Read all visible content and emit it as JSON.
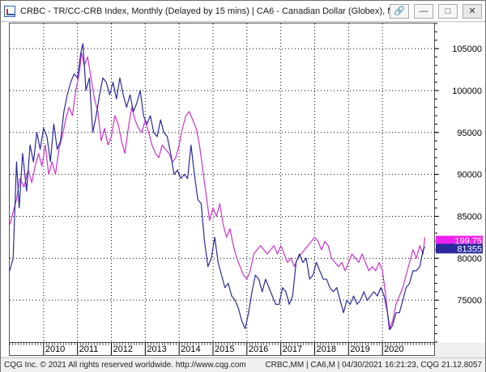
{
  "window": {
    "title": "CRBC - TR/CC-CRB Index, Monthly (Delayed by 15 mins)  |  CA6 - Canadian Dollar (Globex), M...",
    "buttons": {
      "link_icon": "link-icon",
      "minimize": "—",
      "maximize": "□",
      "close": "✕"
    }
  },
  "statusbar": {
    "left": "CQG Inc. © 2021 All rights reserved worldwide. http://www.cqg.com",
    "right": "CRBC,MM | CA6,M | 04/30/2021 16:21:23, CQG 21.12.8057"
  },
  "colors": {
    "crb": "#cc33cc",
    "cad": "#2a2a9c"
  },
  "chart_data": {
    "type": "line",
    "x_range": [
      2009.0,
      2021.55
    ],
    "ylim": [
      70000,
      108000
    ],
    "x_ticks": [
      2010,
      2011,
      2012,
      2013,
      2014,
      2015,
      2016,
      2017,
      2018,
      2019,
      2020
    ],
    "x_tick_labels": [
      "2010",
      "2011",
      "2012",
      "2013",
      "2014",
      "2015",
      "2016",
      "2017",
      "2018",
      "2019",
      "2020"
    ],
    "y_ticks": [
      75000,
      80000,
      85000,
      90000,
      95000,
      100000,
      105000
    ],
    "y_tick_labels": [
      "75000",
      "80000",
      "85000",
      "90000",
      "95000",
      "100000",
      "105000"
    ],
    "grid": true,
    "last_value_markers": [
      {
        "label": "199.75",
        "value": 82100,
        "color": "#ee22ee"
      },
      {
        "label": "81355",
        "value": 81150,
        "color": "#2a2a9c"
      }
    ],
    "series": [
      {
        "points": [
          [
            2009.0,
            84000
          ],
          [
            2009.1,
            85500
          ],
          [
            2009.2,
            87000
          ],
          [
            2009.3,
            89500
          ],
          [
            2009.42,
            88500
          ],
          [
            2009.55,
            90500
          ],
          [
            2009.65,
            89000
          ],
          [
            2009.75,
            91000
          ],
          [
            2009.85,
            92500
          ],
          [
            2009.95,
            91000
          ],
          [
            2010.05,
            93500
          ],
          [
            2010.15,
            90000
          ],
          [
            2010.25,
            91500
          ],
          [
            2010.35,
            90000
          ],
          [
            2010.45,
            93000
          ],
          [
            2010.55,
            94500
          ],
          [
            2010.65,
            96500
          ],
          [
            2010.75,
            98000
          ],
          [
            2010.85,
            97000
          ],
          [
            2010.95,
            100000
          ],
          [
            2011.05,
            102000
          ],
          [
            2011.12,
            104500
          ],
          [
            2011.2,
            103000
          ],
          [
            2011.3,
            104000
          ],
          [
            2011.4,
            101500
          ],
          [
            2011.5,
            99000
          ],
          [
            2011.6,
            97500
          ],
          [
            2011.7,
            94000
          ],
          [
            2011.8,
            95500
          ],
          [
            2011.9,
            93500
          ],
          [
            2012.0,
            94500
          ],
          [
            2012.1,
            97000
          ],
          [
            2012.2,
            96000
          ],
          [
            2012.3,
            94000
          ],
          [
            2012.4,
            92500
          ],
          [
            2012.5,
            95500
          ],
          [
            2012.6,
            98000
          ],
          [
            2012.7,
            96500
          ],
          [
            2012.8,
            95500
          ],
          [
            2012.9,
            95000
          ],
          [
            2013.0,
            96500
          ],
          [
            2013.1,
            95000
          ],
          [
            2013.2,
            93500
          ],
          [
            2013.3,
            92500
          ],
          [
            2013.4,
            92000
          ],
          [
            2013.5,
            93500
          ],
          [
            2013.6,
            93000
          ],
          [
            2013.7,
            92500
          ],
          [
            2013.8,
            91500
          ],
          [
            2013.9,
            92000
          ],
          [
            2014.0,
            93500
          ],
          [
            2014.1,
            95500
          ],
          [
            2014.2,
            97000
          ],
          [
            2014.3,
            97500
          ],
          [
            2014.4,
            96500
          ],
          [
            2014.5,
            95500
          ],
          [
            2014.6,
            93500
          ],
          [
            2014.7,
            90500
          ],
          [
            2014.8,
            87500
          ],
          [
            2014.9,
            84500
          ],
          [
            2015.0,
            86000
          ],
          [
            2015.1,
            85000
          ],
          [
            2015.2,
            86500
          ],
          [
            2015.3,
            84000
          ],
          [
            2015.4,
            82500
          ],
          [
            2015.5,
            83500
          ],
          [
            2015.6,
            81500
          ],
          [
            2015.7,
            80000
          ],
          [
            2015.8,
            79000
          ],
          [
            2015.9,
            78000
          ],
          [
            2016.0,
            77500
          ],
          [
            2016.1,
            78500
          ],
          [
            2016.2,
            80500
          ],
          [
            2016.3,
            81000
          ],
          [
            2016.4,
            81500
          ],
          [
            2016.5,
            81000
          ],
          [
            2016.6,
            80500
          ],
          [
            2016.7,
            81000
          ],
          [
            2016.8,
            81500
          ],
          [
            2016.9,
            80500
          ],
          [
            2017.0,
            81500
          ],
          [
            2017.1,
            80500
          ],
          [
            2017.2,
            79500
          ],
          [
            2017.3,
            80000
          ],
          [
            2017.4,
            79000
          ],
          [
            2017.5,
            80000
          ],
          [
            2017.6,
            80500
          ],
          [
            2017.7,
            81000
          ],
          [
            2017.8,
            81500
          ],
          [
            2017.9,
            82000
          ],
          [
            2018.0,
            82500
          ],
          [
            2018.1,
            82000
          ],
          [
            2018.2,
            81000
          ],
          [
            2018.3,
            82000
          ],
          [
            2018.4,
            81500
          ],
          [
            2018.5,
            80000
          ],
          [
            2018.6,
            79500
          ],
          [
            2018.7,
            79000
          ],
          [
            2018.8,
            79500
          ],
          [
            2018.9,
            78500
          ],
          [
            2019.0,
            79500
          ],
          [
            2019.1,
            80500
          ],
          [
            2019.2,
            80000
          ],
          [
            2019.3,
            79500
          ],
          [
            2019.4,
            80500
          ],
          [
            2019.5,
            79500
          ],
          [
            2019.6,
            78500
          ],
          [
            2019.7,
            79000
          ],
          [
            2019.8,
            78500
          ],
          [
            2019.9,
            79500
          ],
          [
            2020.0,
            78500
          ],
          [
            2020.1,
            75500
          ],
          [
            2020.2,
            71500
          ],
          [
            2020.3,
            72500
          ],
          [
            2020.4,
            74500
          ],
          [
            2020.5,
            75500
          ],
          [
            2020.6,
            76500
          ],
          [
            2020.7,
            78000
          ],
          [
            2020.8,
            79500
          ],
          [
            2020.9,
            81000
          ],
          [
            2021.0,
            80000
          ],
          [
            2021.1,
            81500
          ],
          [
            2021.2,
            80500
          ],
          [
            2021.25,
            82500
          ]
        ],
        "color": "#cc33cc"
      },
      {
        "points": [
          [
            2009.0,
            78500
          ],
          [
            2009.1,
            80000
          ],
          [
            2009.2,
            91500
          ],
          [
            2009.28,
            86000
          ],
          [
            2009.38,
            92500
          ],
          [
            2009.5,
            88000
          ],
          [
            2009.6,
            93500
          ],
          [
            2009.7,
            91500
          ],
          [
            2009.8,
            95000
          ],
          [
            2009.9,
            93000
          ],
          [
            2010.0,
            95500
          ],
          [
            2010.1,
            94500
          ],
          [
            2010.2,
            91500
          ],
          [
            2010.3,
            96000
          ],
          [
            2010.4,
            93000
          ],
          [
            2010.5,
            94000
          ],
          [
            2010.6,
            97500
          ],
          [
            2010.7,
            99500
          ],
          [
            2010.8,
            101000
          ],
          [
            2010.9,
            102000
          ],
          [
            2011.0,
            101500
          ],
          [
            2011.1,
            104500
          ],
          [
            2011.16,
            105600
          ],
          [
            2011.25,
            100000
          ],
          [
            2011.35,
            101500
          ],
          [
            2011.45,
            95000
          ],
          [
            2011.55,
            97000
          ],
          [
            2011.65,
            99500
          ],
          [
            2011.75,
            101500
          ],
          [
            2011.85,
            101000
          ],
          [
            2011.95,
            99500
          ],
          [
            2012.05,
            101000
          ],
          [
            2012.15,
            99000
          ],
          [
            2012.25,
            101500
          ],
          [
            2012.35,
            99500
          ],
          [
            2012.45,
            98000
          ],
          [
            2012.55,
            99500
          ],
          [
            2012.65,
            97500
          ],
          [
            2012.75,
            98500
          ],
          [
            2012.85,
            100000
          ],
          [
            2012.95,
            97000
          ],
          [
            2013.05,
            96000
          ],
          [
            2013.15,
            97000
          ],
          [
            2013.25,
            95000
          ],
          [
            2013.35,
            94500
          ],
          [
            2013.45,
            96500
          ],
          [
            2013.55,
            95000
          ],
          [
            2013.65,
            94500
          ],
          [
            2013.75,
            92500
          ],
          [
            2013.85,
            90000
          ],
          [
            2013.95,
            90500
          ],
          [
            2014.05,
            89500
          ],
          [
            2014.15,
            90000
          ],
          [
            2014.25,
            89500
          ],
          [
            2014.35,
            93500
          ],
          [
            2014.45,
            90000
          ],
          [
            2014.55,
            87000
          ],
          [
            2014.65,
            86500
          ],
          [
            2014.75,
            82000
          ],
          [
            2014.85,
            79000
          ],
          [
            2014.95,
            80000
          ],
          [
            2015.05,
            82500
          ],
          [
            2015.15,
            79500
          ],
          [
            2015.25,
            78000
          ],
          [
            2015.35,
            76500
          ],
          [
            2015.45,
            77000
          ],
          [
            2015.55,
            75500
          ],
          [
            2015.65,
            75000
          ],
          [
            2015.75,
            74000
          ],
          [
            2015.85,
            72500
          ],
          [
            2015.95,
            71600
          ],
          [
            2016.05,
            73500
          ],
          [
            2016.15,
            76000
          ],
          [
            2016.25,
            78000
          ],
          [
            2016.35,
            77500
          ],
          [
            2016.45,
            76000
          ],
          [
            2016.55,
            77500
          ],
          [
            2016.65,
            76500
          ],
          [
            2016.75,
            75500
          ],
          [
            2016.85,
            74500
          ],
          [
            2016.95,
            74500
          ],
          [
            2017.05,
            76500
          ],
          [
            2017.15,
            76000
          ],
          [
            2017.25,
            74500
          ],
          [
            2017.35,
            75500
          ],
          [
            2017.45,
            79500
          ],
          [
            2017.55,
            80500
          ],
          [
            2017.65,
            79500
          ],
          [
            2017.75,
            80000
          ],
          [
            2017.85,
            77500
          ],
          [
            2017.95,
            78000
          ],
          [
            2018.05,
            79500
          ],
          [
            2018.15,
            78500
          ],
          [
            2018.25,
            77500
          ],
          [
            2018.35,
            77500
          ],
          [
            2018.45,
            76500
          ],
          [
            2018.55,
            76000
          ],
          [
            2018.65,
            76500
          ],
          [
            2018.75,
            75000
          ],
          [
            2018.85,
            73500
          ],
          [
            2018.95,
            75000
          ],
          [
            2019.05,
            74500
          ],
          [
            2019.15,
            75500
          ],
          [
            2019.25,
            74500
          ],
          [
            2019.35,
            75000
          ],
          [
            2019.45,
            76000
          ],
          [
            2019.55,
            75000
          ],
          [
            2019.65,
            75500
          ],
          [
            2019.75,
            76000
          ],
          [
            2019.85,
            75500
          ],
          [
            2019.95,
            76500
          ],
          [
            2020.05,
            75500
          ],
          [
            2020.15,
            73500
          ],
          [
            2020.22,
            71500
          ],
          [
            2020.3,
            72000
          ],
          [
            2020.4,
            73500
          ],
          [
            2020.5,
            73500
          ],
          [
            2020.6,
            75000
          ],
          [
            2020.7,
            76500
          ],
          [
            2020.8,
            77000
          ],
          [
            2020.9,
            78500
          ],
          [
            2021.0,
            78500
          ],
          [
            2021.1,
            79000
          ],
          [
            2021.2,
            81000
          ],
          [
            2021.25,
            81355
          ]
        ],
        "color": "#2a2a9c"
      }
    ]
  }
}
